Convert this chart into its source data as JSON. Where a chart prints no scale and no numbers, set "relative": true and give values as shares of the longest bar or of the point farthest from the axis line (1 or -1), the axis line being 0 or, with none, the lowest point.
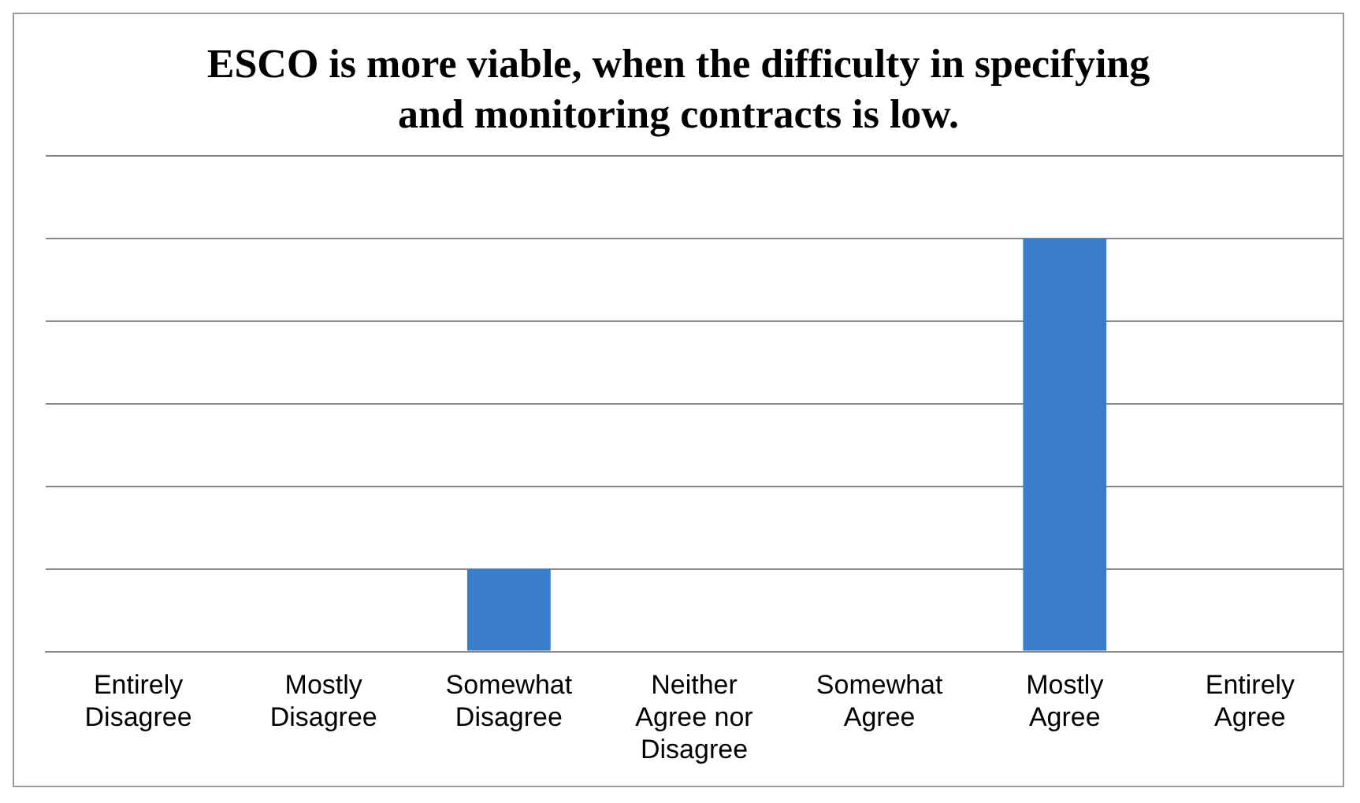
{
  "chart_data": {
    "type": "bar",
    "title": "ESCO is more viable, when the difficulty in specifying and monitoring contracts is low.",
    "categories": [
      "Entirely Disagree",
      "Mostly Disagree",
      "Somewhat Disagree",
      "Neither Agree nor Disagree",
      "Somewhat Agree",
      "Mostly Agree",
      "Entirely Agree"
    ],
    "values": [
      0,
      0,
      0.2,
      0,
      0,
      1,
      0
    ],
    "color": "#3a7dcb",
    "relative": true,
    "grid": "y"
  }
}
